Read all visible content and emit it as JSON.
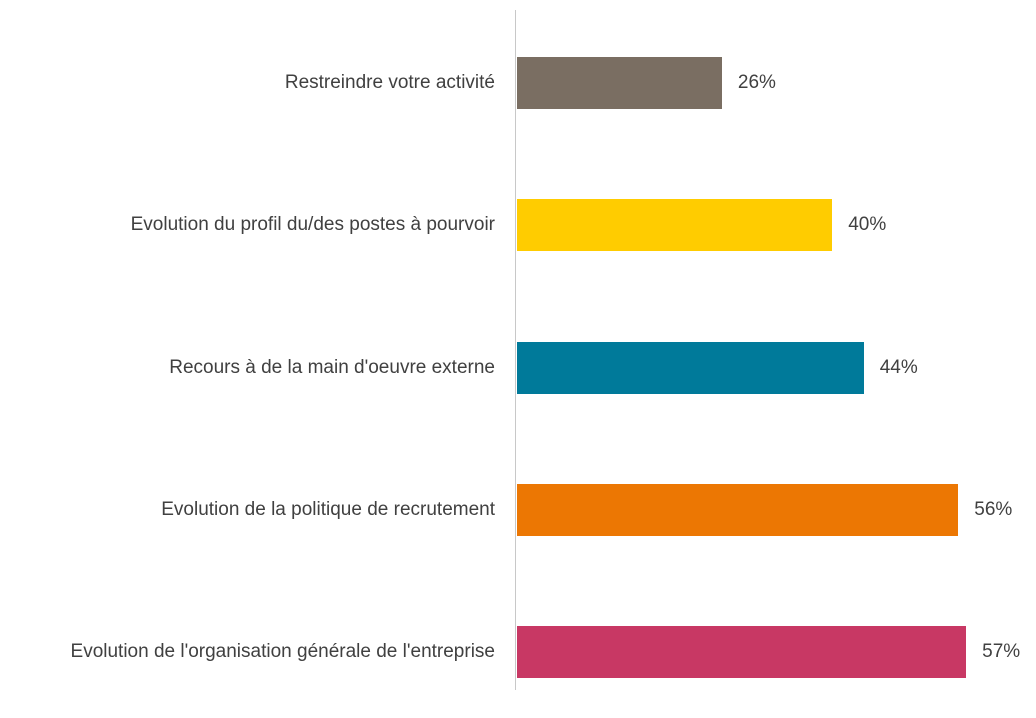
{
  "chart_data": {
    "type": "bar",
    "orientation": "horizontal",
    "categories": [
      "Restreindre votre activité",
      "Evolution du profil du/des postes à pourvoir",
      "Recours à de la main d'oeuvre externe",
      "Evolution de la politique de recrutement",
      "Evolution de l'organisation générale de l'entreprise"
    ],
    "values": [
      26,
      40,
      44,
      56,
      57
    ],
    "value_labels": [
      "26%",
      "40%",
      "44%",
      "56%",
      "57%"
    ],
    "colors": [
      "#7a6e62",
      "#ffcc00",
      "#007a9a",
      "#ec7703",
      "#c83864"
    ]
  }
}
